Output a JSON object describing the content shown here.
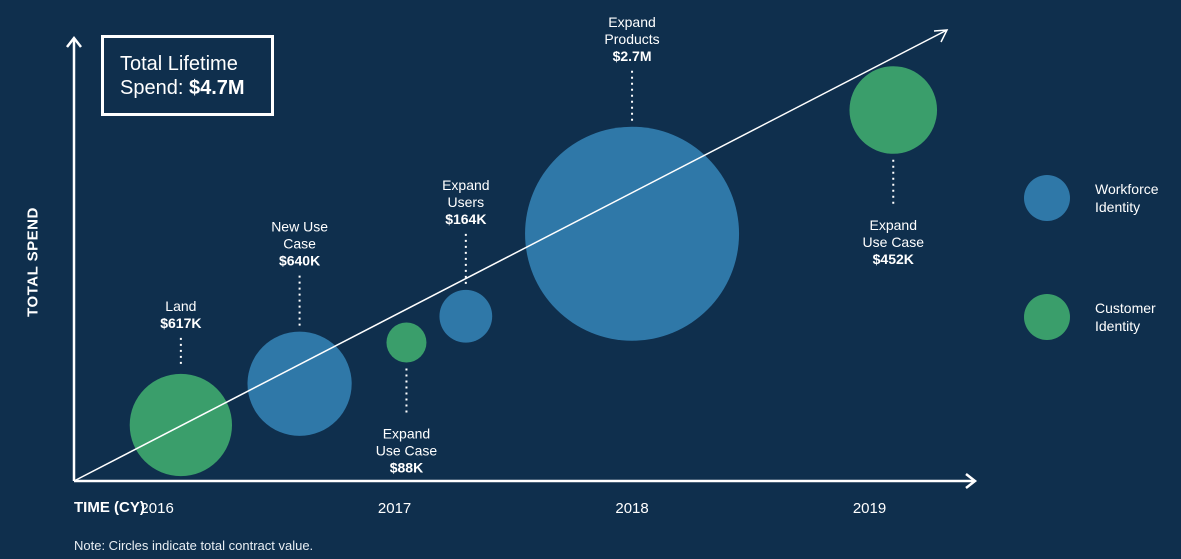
{
  "total_box": {
    "label_line1": "Total Lifetime",
    "label_prefix": "Spend: ",
    "value": "$4.7M"
  },
  "axes": {
    "ylabel": "TOTAL SPEND",
    "xlabel": "TIME (CY)"
  },
  "note": "Note: Circles indicate total contract value.",
  "legend": [
    {
      "label": "Workforce Identity",
      "color": "#2f78a8"
    },
    {
      "label": "Customer Identity",
      "color": "#3a9e6b"
    }
  ],
  "chart_data": {
    "type": "scatter",
    "xlabel": "TIME (CY)",
    "ylabel": "TOTAL SPEND",
    "x_ticks": [
      "2016",
      "2017",
      "2018",
      "2019"
    ],
    "xlim": [
      2015.65,
      2019.6
    ],
    "size_encodes": "total contract value",
    "points": [
      {
        "name": "Land",
        "label_lines": [
          "Land"
        ],
        "value_label": "$617K",
        "value": 617,
        "x": 2016.1,
        "y": 0.12,
        "series": "Customer Identity",
        "label_position": "above"
      },
      {
        "name": "New Use Case",
        "label_lines": [
          "New Use",
          "Case"
        ],
        "value_label": "$640K",
        "value": 640,
        "x": 2016.6,
        "y": 0.23,
        "series": "Workforce Identity",
        "label_position": "above"
      },
      {
        "name": "Expand Use Case",
        "label_lines": [
          "Expand",
          "Use Case"
        ],
        "value_label": "$88K",
        "value": 88,
        "x": 2017.05,
        "y": 0.34,
        "series": "Customer Identity",
        "label_position": "below"
      },
      {
        "name": "Expand Users",
        "label_lines": [
          "Expand",
          "Users"
        ],
        "value_label": "$164K",
        "value": 164,
        "x": 2017.3,
        "y": 0.41,
        "series": "Workforce Identity",
        "label_position": "above"
      },
      {
        "name": "Expand Products",
        "label_lines": [
          "Expand",
          "Products"
        ],
        "value_label": "$2.7M",
        "value": 2700,
        "x": 2018.0,
        "y": 0.63,
        "series": "Workforce Identity",
        "label_position": "above"
      },
      {
        "name": "Expand Use Case",
        "label_lines": [
          "Expand",
          "Use Case"
        ],
        "value_label": "$452K",
        "value": 452,
        "x": 2019.1,
        "y": 0.96,
        "series": "Customer Identity",
        "label_position": "below"
      }
    ],
    "series": [
      {
        "name": "Workforce Identity",
        "color": "#2f78a8"
      },
      {
        "name": "Customer Identity",
        "color": "#3a9e6b"
      }
    ],
    "trend_line": true,
    "legend_position": "right"
  }
}
